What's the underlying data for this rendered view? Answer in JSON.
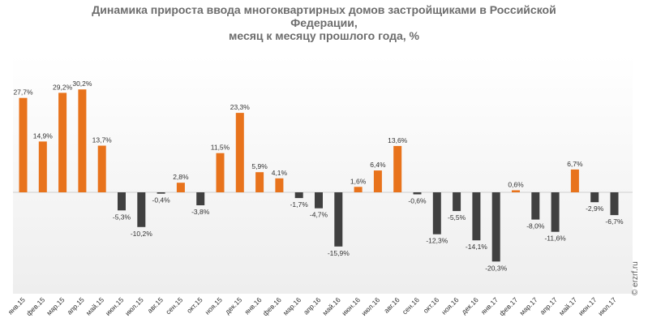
{
  "title_lines": [
    "Динамика прироста ввода многоквартирных домов застройщиками в Российской",
    "Федерации,",
    "месяц к месяцу прошлого года, %"
  ],
  "watermark": "© erzrf.ru",
  "colors": {
    "positive": "#E8731C",
    "negative": "#404040",
    "background_top": "#FFFFFF",
    "background_bottom": "#EEEEEE"
  },
  "chart_data": {
    "type": "bar",
    "title": "Динамика прироста ввода многоквартирных домов застройщиками в Российской Федерации, месяц к месяцу прошлого года, %",
    "ylim": [
      -30,
      35
    ],
    "grid": false,
    "categories": [
      "янв.15",
      "фев.15",
      "мар.15",
      "апр.15",
      "май.15",
      "июн.15",
      "июл.15",
      "авг.15",
      "сен.15",
      "окт.15",
      "ноя.15",
      "дек.15",
      "янв.16",
      "фев.16",
      "мар.16",
      "апр.16",
      "май.16",
      "июн.16",
      "июл.16",
      "авг.16",
      "сен.16",
      "окт.16",
      "ноя.16",
      "дек.16",
      "янв.17",
      "фев.17",
      "мар.17",
      "апр.17",
      "май.17",
      "июн.17",
      "июл.17"
    ],
    "values": [
      27.7,
      14.9,
      29.2,
      30.2,
      13.7,
      -5.3,
      -10.2,
      -0.4,
      2.8,
      -3.8,
      11.5,
      23.3,
      5.9,
      4.1,
      -1.7,
      -4.7,
      -15.9,
      1.6,
      6.4,
      13.6,
      -0.6,
      -12.3,
      -5.5,
      -14.1,
      -20.3,
      0.6,
      -8.0,
      -11.6,
      6.7,
      -2.9,
      -6.7
    ],
    "labels": [
      "27,7%",
      "14,9%",
      "29,2%",
      "30,2%",
      "13,7%",
      "-5,3%",
      "-10,2%",
      "-0,4%",
      "2,8%",
      "-3,8%",
      "11,5%",
      "23,3%",
      "5,9%",
      "4,1%",
      "-1,7%",
      "-4,7%",
      "-15,9%",
      "1,6%",
      "6,4%",
      "13,6%",
      "-0,6%",
      "-12,3%",
      "-5,5%",
      "-14,1%",
      "-20,3%",
      "0,6%",
      "-8,0%",
      "-11,6%",
      "6,7%",
      "-2,9%",
      "-6,7%"
    ]
  }
}
